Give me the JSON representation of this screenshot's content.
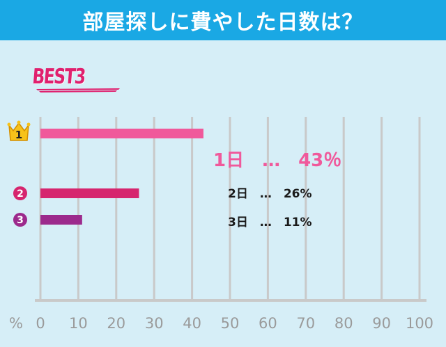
{
  "header": {
    "title": "部屋探しに費やした日数は？"
  },
  "best_label": "BEST3",
  "results": [
    {
      "rank": "1",
      "text": "1日　…　43％",
      "color": "#f0599b"
    },
    {
      "rank": "2",
      "text": "2日　…　26%",
      "color": "#d6256e"
    },
    {
      "rank": "3",
      "text": "3日　…　11%",
      "color": "#9c2a8c"
    }
  ],
  "chart_data": {
    "type": "bar",
    "orientation": "horizontal",
    "categories": [
      "1日",
      "2日",
      "3日"
    ],
    "values": [
      43,
      26,
      11
    ],
    "bar_colors": [
      "#f0599b",
      "#d6256e",
      "#9c2a8c"
    ],
    "xlim": [
      0,
      100
    ],
    "x_ticks": [
      "0",
      "10",
      "20",
      "30",
      "40",
      "50",
      "60",
      "70",
      "80",
      "90",
      "100"
    ],
    "xlabel": "%",
    "grid": true
  },
  "colors": {
    "header_bg": "#1aa8e4",
    "panel_bg": "#d6eef7",
    "grid": "#c9c9c9",
    "crown": "#f7c21a",
    "accent": "#e0206e"
  }
}
